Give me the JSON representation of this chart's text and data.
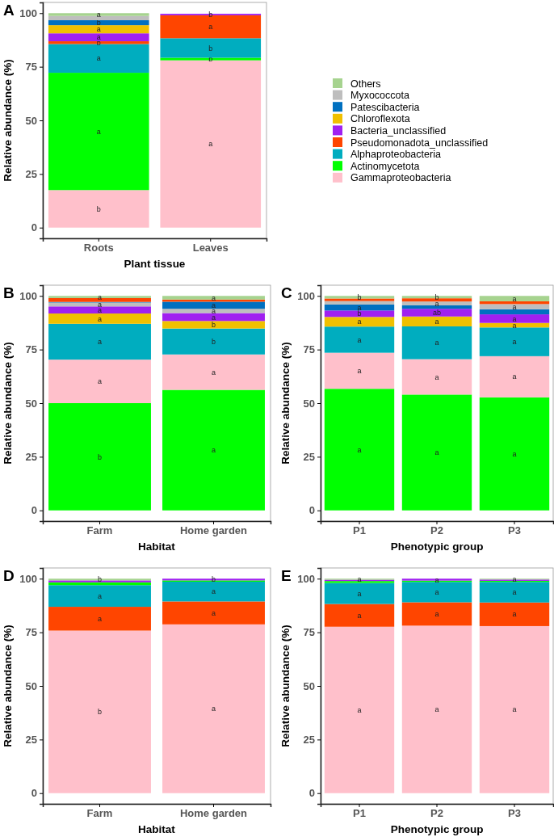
{
  "chart_data": [
    {
      "type": "bar",
      "stacked": true,
      "title": "A",
      "xlabel": "Plant tissue",
      "ylabel": "Relative abundance (%)",
      "categories": [
        "Roots",
        "Leaves"
      ],
      "ylim": [
        -5,
        105
      ],
      "yticks": [
        0,
        25,
        50,
        75,
        100
      ],
      "legend": "right",
      "series": [
        {
          "name": "Gammaproteobacteria",
          "color": "#ffc0cb",
          "values": [
            17.5,
            78.0
          ],
          "value_labels": [
            "b",
            "a"
          ]
        },
        {
          "name": "Actinomycetota",
          "color": "#00ff00",
          "values": [
            54.7,
            1.2
          ],
          "value_labels": [
            "a",
            "b"
          ]
        },
        {
          "name": "Alphaproteobacteria",
          "color": "#00adbf",
          "values": [
            13.4,
            9.1
          ],
          "value_labels": [
            "a",
            "b"
          ]
        },
        {
          "name": "Pseudomonadota_unclassified",
          "color": "#ff4500",
          "values": [
            1.3,
            10.7
          ],
          "value_labels": [
            "b",
            "a"
          ]
        },
        {
          "name": "Bacteria_unclassified",
          "color": "#a020f0",
          "values": [
            3.7,
            0.7
          ],
          "value_labels": [
            "a",
            "b"
          ]
        },
        {
          "name": "Chloroflexota",
          "color": "#f0c000",
          "values": [
            3.8,
            null
          ],
          "value_labels": [
            "a",
            null
          ]
        },
        {
          "name": "Patescibacteria",
          "color": "#0070c0",
          "values": [
            2.3,
            null
          ],
          "value_labels": [
            "b",
            null
          ]
        },
        {
          "name": "Myxococcota",
          "color": "#bebebe",
          "values": [
            2.0,
            null
          ],
          "value_labels": [
            null,
            null
          ]
        },
        {
          "name": "Others",
          "color": "#a6d38f",
          "values": [
            1.3,
            null
          ],
          "value_labels": [
            "a",
            null
          ]
        }
      ]
    },
    {
      "type": "bar",
      "stacked": true,
      "title": "B",
      "xlabel": "Habitat",
      "ylabel": "Relative abundance (%)",
      "categories": [
        "Farm",
        "Home garden"
      ],
      "ylim": [
        -5,
        105
      ],
      "yticks": [
        0,
        25,
        50,
        75,
        100
      ],
      "series": [
        {
          "color": "#00ff00",
          "values": [
            50.0,
            56.2
          ],
          "value_labels": [
            "b",
            "a"
          ]
        },
        {
          "color": "#ffc0cb",
          "values": [
            20.3,
            16.5
          ],
          "value_labels": [
            "a",
            "a"
          ]
        },
        {
          "color": "#00adbf",
          "values": [
            16.7,
            12.1
          ],
          "value_labels": [
            "a",
            "b"
          ]
        },
        {
          "color": "#f0c000",
          "values": [
            4.8,
            3.5
          ],
          "value_labels": [
            "a",
            "b"
          ]
        },
        {
          "color": "#a020f0",
          "values": [
            3.3,
            3.7
          ],
          "value_labels": [
            "a",
            "a"
          ]
        },
        {
          "color": "#bebebe",
          "values": [
            1.8,
            2.0
          ],
          "value_labels": [
            "a",
            "a"
          ]
        },
        {
          "color": "#0070c0",
          "values": [
            0.3,
            3.3
          ],
          "value_labels": [
            null,
            "a"
          ]
        },
        {
          "color": "#ff4500",
          "values": [
            1.8,
            1.0
          ],
          "value_labels": [
            null,
            null
          ]
        },
        {
          "color": "#a6d38f",
          "values": [
            1.0,
            1.7
          ],
          "value_labels": [
            "a",
            "a"
          ]
        }
      ]
    },
    {
      "type": "bar",
      "stacked": true,
      "title": "C",
      "xlabel": "Phenotypic group",
      "ylabel": "Relative abundance (%)",
      "categories": [
        "P1",
        "P2",
        "P3"
      ],
      "ylim": [
        -5,
        105
      ],
      "yticks": [
        0,
        25,
        50,
        75,
        100
      ],
      "series": [
        {
          "color": "#00ff00",
          "values": [
            56.7,
            54.0,
            52.7
          ],
          "value_labels": [
            "a",
            "a",
            "a"
          ]
        },
        {
          "color": "#ffc0cb",
          "values": [
            16.8,
            16.5,
            19.2
          ],
          "value_labels": [
            "a",
            "a",
            "a"
          ]
        },
        {
          "color": "#00adbf",
          "values": [
            12.2,
            15.3,
            13.4
          ],
          "value_labels": [
            "a",
            "a",
            "a"
          ]
        },
        {
          "color": "#f0c000",
          "values": [
            4.5,
            4.6,
            2.1
          ],
          "value_labels": [
            "a",
            "a",
            "a"
          ]
        },
        {
          "color": "#a020f0",
          "values": [
            3.0,
            3.6,
            4.0
          ],
          "value_labels": [
            "b",
            "ab",
            "a"
          ]
        },
        {
          "color": "#0070c0",
          "values": [
            2.8,
            1.6,
            2.4
          ],
          "value_labels": [
            "a",
            null,
            null
          ]
        },
        {
          "color": "#bebebe",
          "values": [
            1.6,
            1.8,
            2.4
          ],
          "value_labels": [
            null,
            "a",
            "a"
          ]
        },
        {
          "color": "#ff4500",
          "values": [
            1.2,
            1.5,
            1.3
          ],
          "value_labels": [
            null,
            null,
            null
          ]
        },
        {
          "color": "#a6d38f",
          "values": [
            1.2,
            1.1,
            2.5
          ],
          "value_labels": [
            "b",
            "b",
            "a"
          ]
        }
      ]
    },
    {
      "type": "bar",
      "stacked": true,
      "title": "D",
      "xlabel": "Habitat",
      "ylabel": "Relative abundance (%)",
      "categories": [
        "Farm",
        "Home garden"
      ],
      "ylim": [
        -5,
        105
      ],
      "yticks": [
        0,
        25,
        50,
        75,
        100
      ],
      "series": [
        {
          "color": "#ffc0cb",
          "values": [
            75.8,
            78.7
          ],
          "value_labels": [
            "b",
            "a"
          ]
        },
        {
          "color": "#ff4500",
          "values": [
            11.1,
            10.7
          ],
          "value_labels": [
            "a",
            "a"
          ]
        },
        {
          "color": "#00adbf",
          "values": [
            10.1,
            9.2
          ],
          "value_labels": [
            "a",
            "a"
          ]
        },
        {
          "color": "#00ff00",
          "values": [
            1.3,
            0.6
          ],
          "value_labels": [
            null,
            null
          ]
        },
        {
          "color": "#a020f0",
          "values": [
            0.9,
            0.8
          ],
          "value_labels": [
            null,
            "b"
          ]
        },
        {
          "color": "#a6d38f",
          "values": [
            0.8,
            null
          ],
          "value_labels": [
            "b",
            null
          ]
        }
      ]
    },
    {
      "type": "bar",
      "stacked": true,
      "title": "E",
      "xlabel": "Phenotypic group",
      "ylabel": "Relative abundance (%)",
      "categories": [
        "P1",
        "P2",
        "P3"
      ],
      "ylim": [
        -5,
        105
      ],
      "yticks": [
        0,
        25,
        50,
        75,
        100
      ],
      "series": [
        {
          "color": "#ffc0cb",
          "values": [
            77.6,
            78.1,
            77.9
          ],
          "value_labels": [
            "a",
            "a",
            "a"
          ]
        },
        {
          "color": "#ff4500",
          "values": [
            10.6,
            10.9,
            11.0
          ],
          "value_labels": [
            "a",
            "a",
            "a"
          ]
        },
        {
          "color": "#00adbf",
          "values": [
            9.8,
            9.5,
            9.6
          ],
          "value_labels": [
            "a",
            "a",
            "a"
          ]
        },
        {
          "color": "#00ff00",
          "values": [
            0.9,
            0.6,
            0.5
          ],
          "value_labels": [
            null,
            null,
            null
          ]
        },
        {
          "color": "#a020f0",
          "values": [
            0.6,
            0.9,
            0.6
          ],
          "value_labels": [
            null,
            "a",
            null
          ]
        },
        {
          "color": "#a6d38f",
          "values": [
            0.5,
            null,
            0.4
          ],
          "value_labels": [
            "a",
            null,
            "a"
          ]
        }
      ]
    }
  ]
}
